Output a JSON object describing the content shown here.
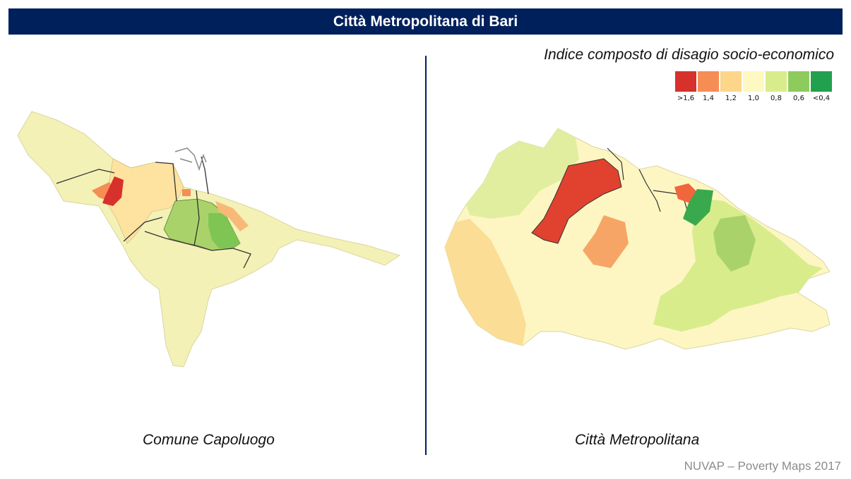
{
  "header": {
    "title": "Città Metropolitana di Bari"
  },
  "legend": {
    "title": "Indice composto di disagio socio-economico",
    "items": [
      {
        "label": ">1,6",
        "color": "#d7312c"
      },
      {
        "label": "1,4",
        "color": "#f68d55"
      },
      {
        "label": "1,2",
        "color": "#fdd68a"
      },
      {
        "label": "1,0",
        "color": "#fdf9c0"
      },
      {
        "label": "0,8",
        "color": "#d8ec8c"
      },
      {
        "label": "0,6",
        "color": "#8ecb5d"
      },
      {
        "label": "<0,4",
        "color": "#21a04e"
      }
    ]
  },
  "maps": {
    "left_caption": "Comune Capoluogo",
    "right_caption": "Città Metropolitana"
  },
  "footer": {
    "source": "NUVAP – Poverty Maps 2017"
  }
}
